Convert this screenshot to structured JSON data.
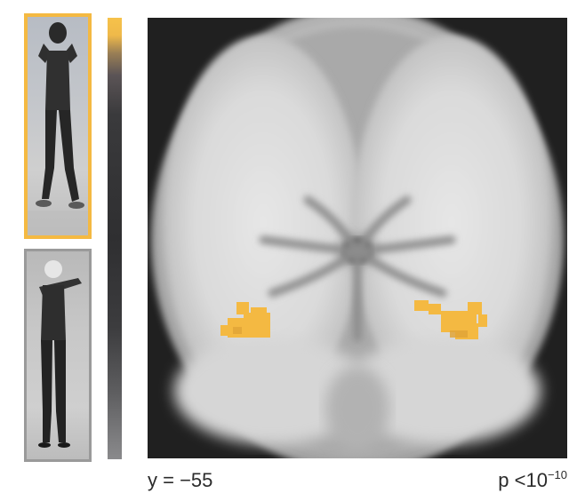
{
  "figure": {
    "slice_label": "y = −55",
    "threshold_prefix": "p <10",
    "threshold_exponent": "−10"
  },
  "colors": {
    "activation": "#f4b942",
    "highlight_frame": "#f4b942",
    "background": "#ffffff"
  },
  "stimuli": [
    {
      "name": "highlighted-stimulus-photo",
      "selected": true
    },
    {
      "name": "control-stimulus-photo",
      "selected": false
    }
  ],
  "icons": [
    "person-figure",
    "brain-slice",
    "color-scale"
  ]
}
